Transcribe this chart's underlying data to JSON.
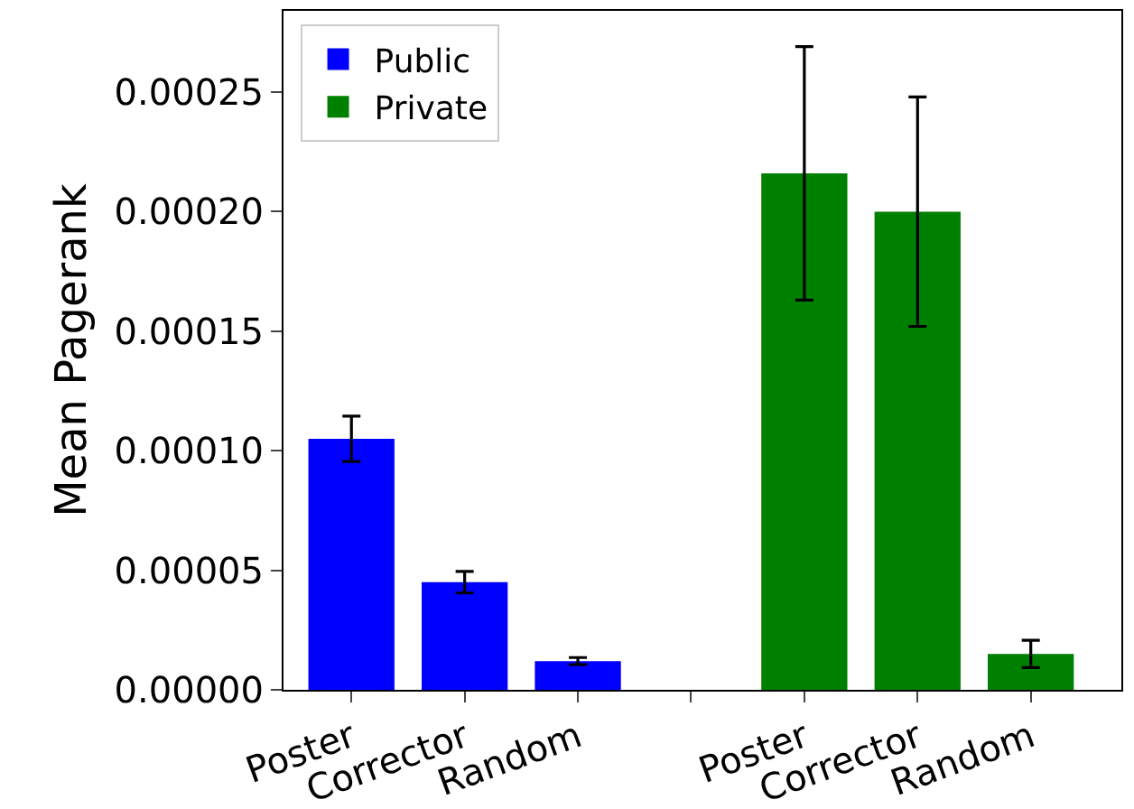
{
  "chart_data": {
    "type": "bar",
    "ylabel": "Mean Pagerank",
    "categories": [
      "Poster",
      "Corrector",
      "Random",
      null,
      "Poster",
      "Corrector",
      "Random"
    ],
    "series": [
      {
        "name": "Public",
        "color": "#0000ff",
        "values": [
          0.000105,
          4.5e-05,
          1.2e-05,
          null,
          null,
          null,
          null
        ],
        "errors": [
          9.5e-06,
          4.5e-06,
          1.5e-06,
          null,
          null,
          null,
          null
        ]
      },
      {
        "name": "Private",
        "color": "#008000",
        "values": [
          null,
          null,
          null,
          null,
          0.000216,
          0.0002,
          1.5e-05
        ],
        "errors": [
          null,
          null,
          null,
          null,
          5.3e-05,
          4.8e-05,
          5.7e-06
        ]
      }
    ],
    "ylim": [
      0,
      0.000284
    ],
    "yticks": [
      {
        "value": 0,
        "label": "0.00000"
      },
      {
        "value": 5e-05,
        "label": "0.00005"
      },
      {
        "value": 0.0001,
        "label": "0.00010"
      },
      {
        "value": 0.00015,
        "label": "0.00015"
      },
      {
        "value": 0.0002,
        "label": "0.00020"
      },
      {
        "value": 0.00025,
        "label": "0.00025"
      }
    ],
    "grid": false,
    "legend": "top left"
  }
}
